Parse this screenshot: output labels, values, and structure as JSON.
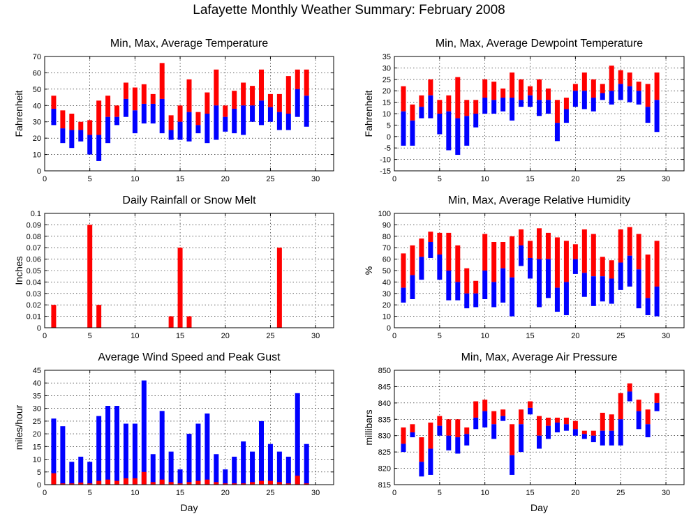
{
  "page": {
    "title": "Lafayette Monthly Weather Summary: February 2008"
  },
  "chart_data": [
    {
      "id": "temperature",
      "type": "bar",
      "title": "Min, Max, Average Temperature",
      "xlabel": "",
      "ylabel": "Fahrenheit",
      "xlim": [
        0,
        32
      ],
      "ylim": [
        0,
        70
      ],
      "xticks": [
        0,
        5,
        10,
        15,
        20,
        25,
        30
      ],
      "yticks": [
        0,
        10,
        20,
        30,
        40,
        50,
        60,
        70
      ],
      "grid": true,
      "x": [
        1,
        2,
        3,
        4,
        5,
        6,
        7,
        8,
        9,
        10,
        11,
        12,
        13,
        14,
        15,
        16,
        17,
        18,
        19,
        20,
        21,
        22,
        23,
        24,
        25,
        26,
        27,
        28,
        29
      ],
      "series": [
        {
          "name": "",
          "color": "#ff0000",
          "lower": [
            38,
            26,
            25,
            25,
            22,
            22,
            33,
            33,
            44,
            37,
            41,
            41,
            44,
            25,
            30,
            36,
            28,
            35,
            40,
            33,
            38,
            40,
            40,
            43,
            39,
            36,
            35,
            50,
            46
          ],
          "upper": [
            46,
            37,
            35,
            30,
            31,
            43,
            46,
            40,
            54,
            51,
            53,
            47,
            66,
            34,
            40,
            56,
            36,
            48,
            62,
            40,
            49,
            54,
            52,
            62,
            47,
            47,
            58,
            62,
            62
          ]
        },
        {
          "name": "",
          "color": "#0000ff",
          "lower": [
            28,
            17,
            14,
            18,
            10,
            6,
            17,
            28,
            33,
            23,
            29,
            29,
            23,
            19,
            19,
            18,
            23,
            17,
            19,
            24,
            23,
            22,
            30,
            28,
            30,
            25,
            25,
            33,
            27
          ],
          "upper": [
            38,
            26,
            25,
            25,
            22,
            22,
            33,
            33,
            44,
            37,
            41,
            41,
            44,
            25,
            30,
            36,
            28,
            35,
            40,
            33,
            38,
            40,
            40,
            43,
            39,
            36,
            35,
            50,
            46
          ]
        }
      ]
    },
    {
      "id": "dewpoint",
      "type": "bar",
      "title": "Min, Max, Average Dewpoint Temperature",
      "xlabel": "",
      "ylabel": "Fahrenheit",
      "xlim": [
        0,
        32
      ],
      "ylim": [
        -15,
        35
      ],
      "xticks": [
        0,
        5,
        10,
        15,
        20,
        25,
        30
      ],
      "yticks": [
        -15,
        -10,
        -5,
        0,
        5,
        10,
        15,
        20,
        25,
        30,
        35
      ],
      "grid": true,
      "x": [
        1,
        2,
        3,
        4,
        5,
        6,
        7,
        8,
        9,
        10,
        11,
        12,
        13,
        14,
        15,
        16,
        17,
        18,
        19,
        20,
        21,
        22,
        23,
        24,
        25,
        26,
        27,
        28,
        29
      ],
      "series": [
        {
          "name": "",
          "color": "#ff0000",
          "lower": [
            11,
            7,
            13,
            18,
            10,
            11,
            8,
            9,
            10,
            17,
            16,
            17,
            17,
            16,
            18,
            16,
            16,
            6,
            12,
            20,
            20,
            17,
            19,
            20,
            23,
            22,
            20,
            13,
            16
          ],
          "upper": [
            22,
            14,
            18,
            25,
            16,
            18,
            26,
            16,
            16,
            25,
            24,
            21,
            28,
            25,
            22,
            25,
            21,
            16,
            17,
            23,
            28,
            25,
            23,
            31,
            29,
            28,
            24,
            23,
            28
          ]
        },
        {
          "name": "",
          "color": "#0000ff",
          "lower": [
            -4,
            -4,
            8,
            8,
            1,
            -6,
            -8,
            -4,
            4,
            10,
            10,
            11,
            7,
            13,
            13,
            9,
            10,
            -2,
            6,
            13,
            12,
            11,
            16,
            14,
            16,
            15,
            14,
            6,
            2
          ],
          "upper": [
            11,
            7,
            13,
            18,
            10,
            11,
            8,
            9,
            10,
            17,
            16,
            17,
            17,
            16,
            18,
            16,
            16,
            6,
            12,
            20,
            20,
            17,
            19,
            20,
            23,
            22,
            20,
            13,
            16
          ]
        }
      ]
    },
    {
      "id": "rainfall",
      "type": "bar",
      "title": "Daily Rainfall or Snow Melt",
      "xlabel": "",
      "ylabel": "Inches",
      "xlim": [
        0,
        32
      ],
      "ylim": [
        0,
        0.1
      ],
      "xticks": [
        0,
        5,
        10,
        15,
        20,
        25,
        30
      ],
      "yticks": [
        0,
        0.01,
        0.02,
        0.03,
        0.04,
        0.05,
        0.06,
        0.07,
        0.08,
        0.09,
        0.1
      ],
      "grid": true,
      "x": [
        1,
        5,
        6,
        14,
        15,
        16,
        26
      ],
      "series": [
        {
          "name": "",
          "color": "#ff0000",
          "values": [
            0.02,
            0.09,
            0.02,
            0.01,
            0.07,
            0.01,
            0.07
          ]
        }
      ]
    },
    {
      "id": "humidity",
      "type": "bar",
      "title": "Min, Max, Average Relative Humidity",
      "xlabel": "",
      "ylabel": "%",
      "xlim": [
        0,
        32
      ],
      "ylim": [
        0,
        100
      ],
      "xticks": [
        0,
        5,
        10,
        15,
        20,
        25,
        30
      ],
      "yticks": [
        0,
        10,
        20,
        30,
        40,
        50,
        60,
        70,
        80,
        90,
        100
      ],
      "grid": true,
      "x": [
        1,
        2,
        3,
        4,
        5,
        6,
        7,
        8,
        9,
        10,
        11,
        12,
        13,
        14,
        15,
        16,
        17,
        18,
        19,
        20,
        21,
        22,
        23,
        24,
        25,
        26,
        27,
        28,
        29
      ],
      "series": [
        {
          "name": "",
          "color": "#ff0000",
          "lower": [
            35,
            46,
            62,
            75,
            64,
            50,
            40,
            30,
            30,
            50,
            40,
            52,
            44,
            72,
            61,
            60,
            60,
            35,
            40,
            60,
            48,
            45,
            45,
            43,
            57,
            63,
            51,
            26,
            36
          ],
          "upper": [
            65,
            72,
            78,
            84,
            83,
            83,
            72,
            52,
            41,
            82,
            75,
            75,
            80,
            86,
            76,
            87,
            83,
            79,
            76,
            73,
            86,
            82,
            62,
            59,
            86,
            88,
            82,
            64,
            76
          ]
        },
        {
          "name": "",
          "color": "#0000ff",
          "lower": [
            22,
            25,
            42,
            61,
            42,
            24,
            24,
            17,
            18,
            25,
            18,
            22,
            10,
            54,
            43,
            18,
            26,
            14,
            11,
            47,
            27,
            19,
            23,
            21,
            33,
            36,
            17,
            11,
            10
          ],
          "upper": [
            35,
            46,
            62,
            75,
            64,
            50,
            40,
            30,
            30,
            50,
            40,
            52,
            44,
            72,
            61,
            60,
            60,
            35,
            40,
            60,
            48,
            45,
            45,
            43,
            57,
            63,
            51,
            26,
            36
          ]
        }
      ]
    },
    {
      "id": "wind",
      "type": "bar",
      "title": "Average Wind Speed and Peak Gust",
      "xlabel": "Day",
      "ylabel": "miles/hour",
      "xlim": [
        0,
        32
      ],
      "ylim": [
        0,
        45
      ],
      "xticks": [
        0,
        5,
        10,
        15,
        20,
        25,
        30
      ],
      "yticks": [
        0,
        5,
        10,
        15,
        20,
        25,
        30,
        35,
        40,
        45
      ],
      "grid": true,
      "x": [
        1,
        2,
        3,
        4,
        5,
        6,
        7,
        8,
        9,
        10,
        11,
        12,
        13,
        14,
        15,
        16,
        17,
        18,
        19,
        20,
        21,
        22,
        23,
        24,
        25,
        26,
        27,
        28,
        29
      ],
      "series": [
        {
          "name": "",
          "color": "#ff0000",
          "values": [
            4.5,
            0.5,
            0.5,
            0.8,
            0.5,
            1.5,
            2,
            1.5,
            2.5,
            2.5,
            5,
            1,
            2,
            1,
            0.5,
            1,
            1.5,
            2,
            1,
            0.5,
            0.5,
            0.5,
            1,
            1.5,
            1.5,
            1,
            0.5,
            3.5,
            0.5
          ]
        },
        {
          "name": "",
          "color": "#0000ff",
          "values": [
            26,
            23,
            9,
            11,
            9,
            27,
            31,
            31,
            24,
            24,
            41,
            12,
            29,
            13,
            6,
            20,
            24,
            28,
            12,
            6,
            11,
            17,
            13,
            25,
            16,
            13,
            11,
            36,
            16
          ]
        }
      ]
    },
    {
      "id": "pressure",
      "type": "bar",
      "title": "Min, Max, Average Air Pressure",
      "xlabel": "Day",
      "ylabel": "millibars",
      "xlim": [
        0,
        32
      ],
      "ylim": [
        815,
        850
      ],
      "xticks": [
        0,
        5,
        10,
        15,
        20,
        25,
        30
      ],
      "yticks": [
        815,
        820,
        825,
        830,
        835,
        840,
        845,
        850
      ],
      "grid": true,
      "x": [
        1,
        2,
        3,
        4,
        5,
        6,
        7,
        8,
        9,
        10,
        11,
        12,
        13,
        14,
        15,
        16,
        17,
        18,
        19,
        20,
        21,
        22,
        23,
        24,
        25,
        26,
        27,
        28,
        29
      ],
      "series": [
        {
          "name": "",
          "color": "#ff0000",
          "lower": [
            827.5,
            831,
            822,
            826,
            833,
            830,
            829.5,
            830.5,
            835.5,
            837.5,
            833.5,
            836,
            824,
            833.5,
            838.5,
            830,
            833,
            834,
            833.5,
            832,
            830.5,
            830,
            831.5,
            831.5,
            835,
            843.5,
            837.5,
            833.5,
            840
          ],
          "upper": [
            832.5,
            833.5,
            829.5,
            834,
            836,
            835,
            835,
            832.5,
            840.5,
            841,
            837.5,
            838,
            833.5,
            838,
            840.5,
            836,
            835.5,
            835.5,
            835.5,
            834.5,
            831.5,
            831.5,
            837,
            836.5,
            843,
            846,
            841,
            838,
            843
          ]
        },
        {
          "name": "",
          "color": "#0000ff",
          "lower": [
            825,
            829.5,
            817.5,
            818,
            830,
            825.5,
            824.5,
            827,
            832,
            832.5,
            829,
            834.5,
            818,
            825,
            836.5,
            826,
            829,
            831,
            831.5,
            830,
            829,
            828,
            827,
            827,
            827,
            840.5,
            832,
            829.5,
            837.5
          ],
          "upper": [
            827.5,
            831,
            822,
            826,
            833,
            830,
            829.5,
            830.5,
            835.5,
            837.5,
            833.5,
            836,
            824,
            833.5,
            838.5,
            830,
            833,
            834,
            833.5,
            832,
            830.5,
            830,
            831.5,
            831.5,
            835,
            843.5,
            837.5,
            833.5,
            840
          ]
        }
      ]
    }
  ]
}
